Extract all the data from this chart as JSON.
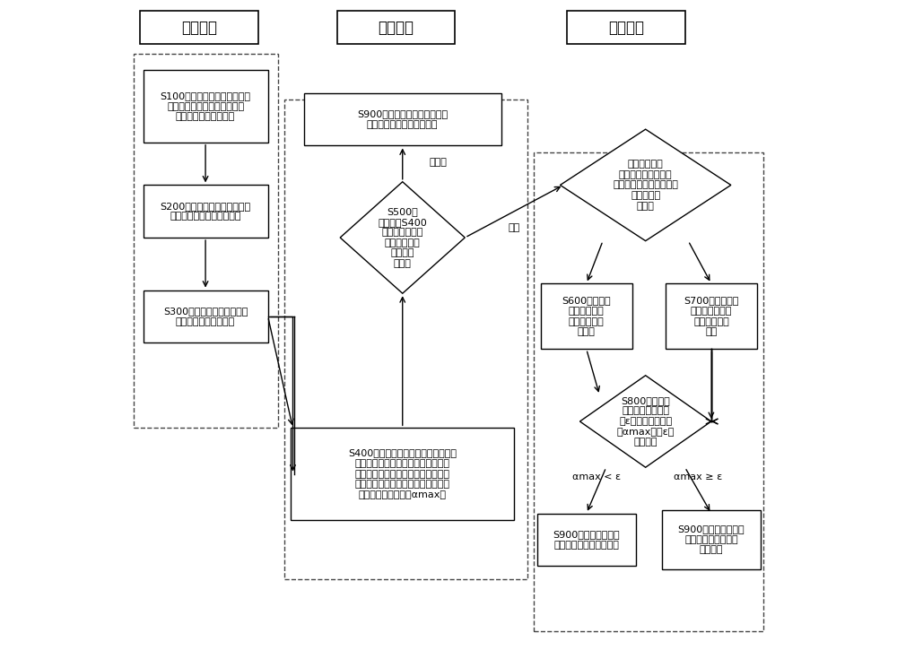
{
  "title_col1": "数据处理",
  "title_col2": "首次分类",
  "title_col3": "二次分类",
  "box_s100": "S100、使用红外光谱仪对样品\n进行红外谱图采集，得到每个\n样本的红外光谱数据。",
  "box_s200": "S200、对样本数据进行数据校\n正、平滑降噪、消除水峰。",
  "box_s300": "S300、采集标准塑料样本，\n得到其红外光谱数据。",
  "box_s400": "S400、对所有数据划分指纹区与特征\n谱带区，并使用光谱角度制图方法，\n结合标准样本数据对待分类样本进行\n分类，并得到每个样本与标准塑料样\n本的最大夹角余弦值αmax。",
  "box_s500": "S500、\n根据步骤S400\n的结果，判定各\n种类是否需要\n进行二次\n分类。",
  "box_s900_top": "S900、该种类样本可直接由光\n谱角度制图方法分类出来。",
  "box_decision": "根据每种样本\n的数量、样本吸收峰\n的数量与位置的差异性选\n择二次分类\n方法。",
  "box_s600": "S600、选择波\n峰检测算法对\n样本进行二次\n分类。",
  "box_s700": "S700、选择支持\n向量机方法对样\n本进行二次分\n类。",
  "box_s800": "S800、对每种\n样本设定相似度阈\n值ε，比较每个样本\n的αmax值与ε值\n的大小。",
  "box_s900_bl": "S900、该样本分类结\n果由二次分类方法得出。",
  "box_s900_br": "S900、该样本分类结\n果由光谱角度制图方\n法得出。",
  "label_no": "不需要",
  "label_yes": "需要",
  "label_lt": "αmax < ε",
  "label_ge": "αmax ≥ ε",
  "bg_color": "#ffffff",
  "font_size": 8.0,
  "title_font_size": 12
}
